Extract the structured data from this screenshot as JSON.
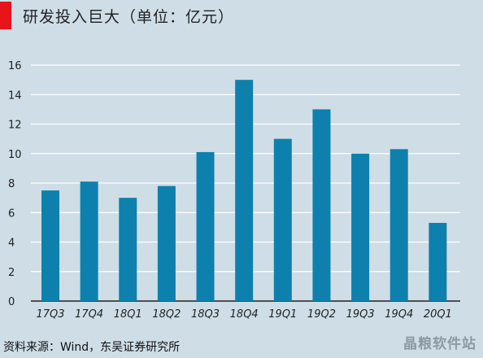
{
  "title": "研发投入巨大（单位：亿元）",
  "source": "资料来源：Wind，东吴证券研究所",
  "watermark": "晶粮软件站",
  "colors": {
    "bar": "#0e80ad",
    "background": "#cfdde6",
    "accent": "#e8141c",
    "grid": "#ffffff"
  },
  "chart_data": {
    "type": "bar",
    "categories": [
      "17Q3",
      "17Q4",
      "18Q1",
      "18Q2",
      "18Q3",
      "18Q4",
      "19Q1",
      "19Q2",
      "19Q3",
      "19Q4",
      "20Q1"
    ],
    "values": [
      7.5,
      8.1,
      7.0,
      7.8,
      10.1,
      15.0,
      11.0,
      13.0,
      10.0,
      10.3,
      5.3
    ],
    "ylim": [
      0,
      16
    ],
    "yticks": [
      "0",
      "2",
      "4",
      "6",
      "8",
      "10",
      "12",
      "14",
      "16"
    ],
    "grid": true
  }
}
